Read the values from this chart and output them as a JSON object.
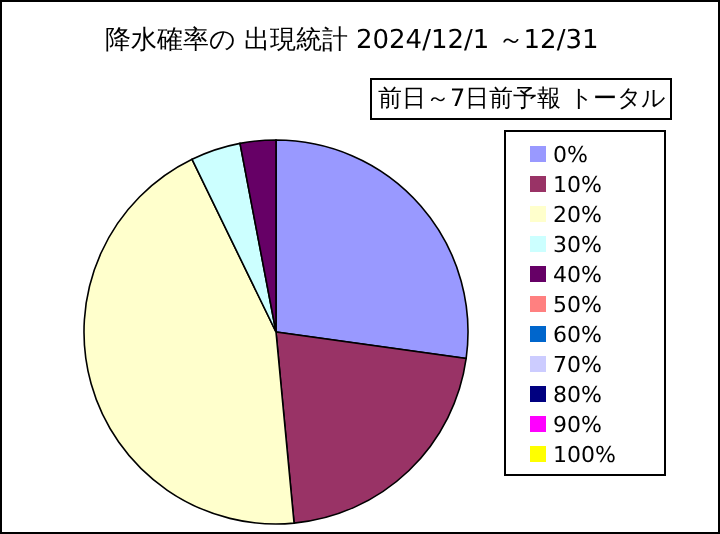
{
  "chart_data": {
    "type": "pie",
    "title": "降水確率の 出現統計  2024/12/1 ～12/31",
    "subtitle": "前日～7日前予報  トータル",
    "categories": [
      "0%",
      "10%",
      "20%",
      "30%",
      "40%",
      "50%",
      "60%",
      "70%",
      "80%",
      "90%",
      "100%"
    ],
    "values": [
      27.2,
      21.3,
      44.3,
      4.2,
      3.0,
      0,
      0,
      0,
      0,
      0,
      0
    ],
    "colors": [
      "#9999ff",
      "#993366",
      "#ffffcc",
      "#ccffff",
      "#660066",
      "#ff8080",
      "#0066cc",
      "#ccccff",
      "#000080",
      "#ff00ff",
      "#ffff00"
    ],
    "legend": "right"
  }
}
